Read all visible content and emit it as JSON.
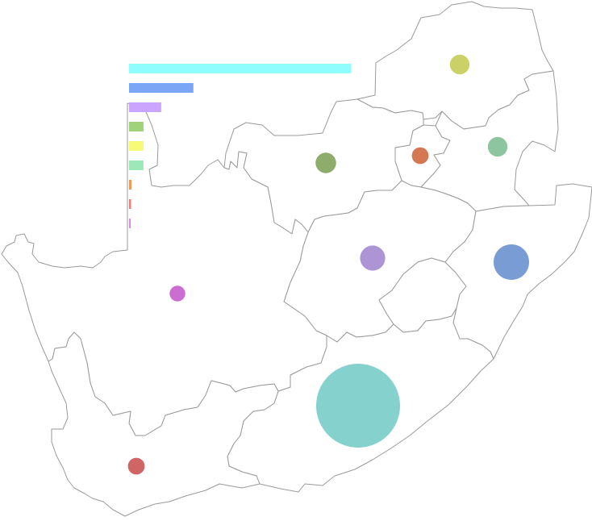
{
  "chart_data": {
    "type": "bubble-map",
    "title": "",
    "legend": "none",
    "grid": false,
    "regions": [
      {
        "id": "eastern-cape",
        "value": 100,
        "color": "#7ecfcb"
      },
      {
        "id": "kwazulu-natal",
        "value": 18,
        "color": "#7297d3"
      },
      {
        "id": "free-state",
        "value": 9,
        "color": "#a98fd3"
      },
      {
        "id": "limpopo",
        "value": 5.5,
        "color": "#c8cd5f"
      },
      {
        "id": "north-west",
        "value": 6,
        "color": "#88a964"
      },
      {
        "id": "mpumalanga",
        "value": 5.5,
        "color": "#87c29b"
      },
      {
        "id": "gauteng",
        "value": 4,
        "color": "#d4704b"
      },
      {
        "id": "western-cape",
        "value": 4,
        "color": "#cc5d5d"
      },
      {
        "id": "northern-cape",
        "value": 3.5,
        "color": "#c865cf"
      }
    ],
    "bars": [
      {
        "value": 100,
        "color": "#8ffdfd"
      },
      {
        "value": 29,
        "color": "#7aa6f5"
      },
      {
        "value": 14.5,
        "color": "#cba5fd"
      },
      {
        "value": 6.5,
        "color": "#9fd27a"
      },
      {
        "value": 6.5,
        "color": "#f6fa76"
      },
      {
        "value": 6.5,
        "color": "#9ee7b8"
      },
      {
        "value": 1.1,
        "color": "#f09858"
      },
      {
        "value": 0.9,
        "color": "#f07b7b"
      },
      {
        "value": 0.6,
        "color": "#dc8ce6"
      }
    ]
  }
}
